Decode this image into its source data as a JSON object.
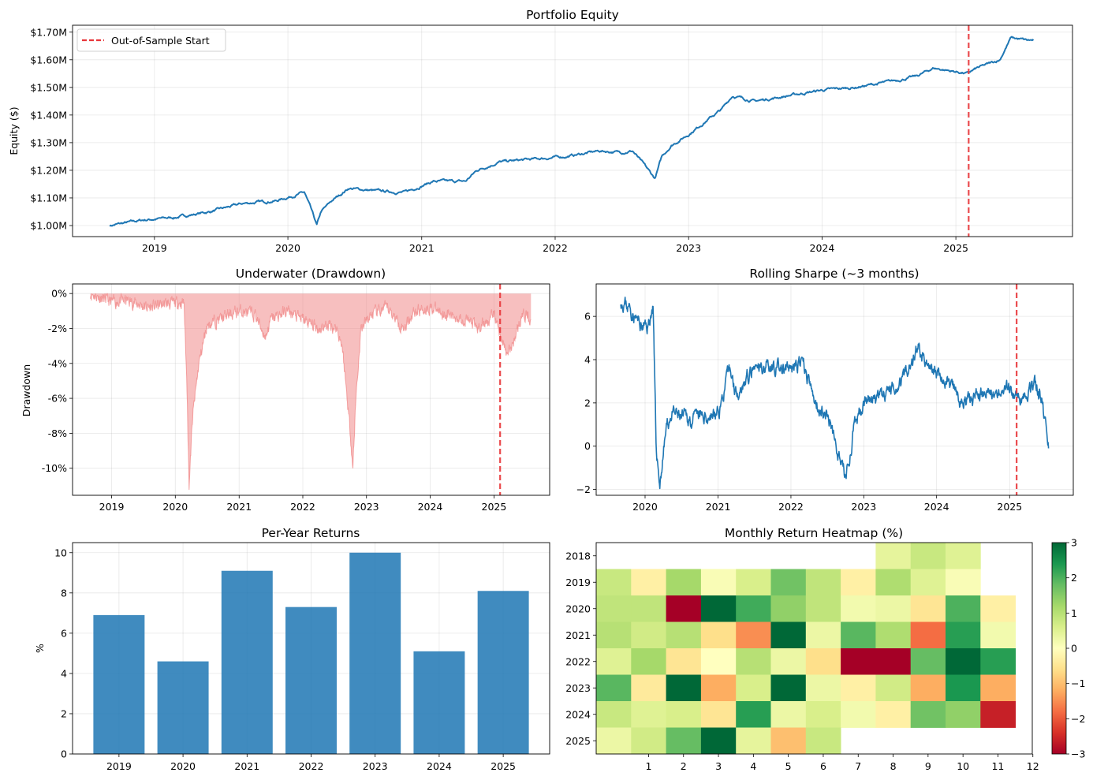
{
  "colors": {
    "series": "#1f77b4",
    "bar": "#1f77b4",
    "drawdown_fill": "#f08080",
    "oos_line": "#e8363a"
  },
  "chart_data": [
    {
      "id": "equity",
      "type": "line",
      "title": "Portfolio Equity",
      "xlabel": "",
      "ylabel": "Equity ($)",
      "x_ticks": [
        "2019",
        "2020",
        "2021",
        "2022",
        "2023",
        "2024",
        "2025"
      ],
      "y_ticks": [
        "$1.00M",
        "$1.10M",
        "$1.20M",
        "$1.30M",
        "$1.40M",
        "$1.50M",
        "$1.60M",
        "$1.70M"
      ],
      "ylim": [
        0.96,
        1.725
      ],
      "xlim": [
        "2018-05-22",
        "2025-11-16"
      ],
      "grid": true,
      "legend": {
        "position": "top-left",
        "entries": [
          "Out-of-Sample Start"
        ]
      },
      "oos_start": "2025-02-05",
      "series": [
        {
          "x": [
            "2018-09-01",
            "2018-12-01",
            "2019-03-01",
            "2019-06-01",
            "2019-09-01",
            "2019-12-01",
            "2020-02-15",
            "2020-03-01",
            "2020-03-20",
            "2020-04-01",
            "2020-05-01",
            "2020-06-15",
            "2020-09-01",
            "2020-11-15",
            "2021-02-01",
            "2021-05-01",
            "2021-06-01",
            "2021-08-01",
            "2021-11-01",
            "2022-02-01",
            "2022-05-01",
            "2022-07-01",
            "2022-08-01",
            "2022-09-01",
            "2022-10-01",
            "2022-10-20",
            "2022-11-15",
            "2023-01-01",
            "2023-03-01",
            "2023-04-01",
            "2023-05-01",
            "2023-07-01",
            "2023-10-01",
            "2024-01-01",
            "2024-04-01",
            "2024-07-01",
            "2024-09-15",
            "2024-11-01",
            "2025-02-01",
            "2025-03-01",
            "2025-05-01",
            "2025-06-01",
            "2025-07-15",
            "2025-08-01"
          ],
          "y": [
            1.0,
            1.02,
            1.03,
            1.05,
            1.08,
            1.09,
            1.12,
            1.07,
            1.0,
            1.05,
            1.09,
            1.135,
            1.125,
            1.12,
            1.16,
            1.16,
            1.2,
            1.23,
            1.24,
            1.25,
            1.27,
            1.265,
            1.27,
            1.22,
            1.17,
            1.25,
            1.29,
            1.33,
            1.39,
            1.42,
            1.47,
            1.45,
            1.47,
            1.49,
            1.5,
            1.52,
            1.54,
            1.57,
            1.55,
            1.57,
            1.6,
            1.68,
            1.67,
            1.67
          ]
        }
      ]
    },
    {
      "id": "underwater",
      "type": "area",
      "title": "Underwater (Drawdown)",
      "xlabel": "",
      "ylabel": "Drawdown",
      "x_ticks": [
        "2019",
        "2020",
        "2021",
        "2022",
        "2023",
        "2024",
        "2025"
      ],
      "y_ticks": [
        "0%",
        "-2%",
        "-4%",
        "-6%",
        "-8%",
        "-10%"
      ],
      "ylim": [
        -0.1155,
        0.0055
      ],
      "xlim": [
        "2018-05-22",
        "2025-11-16"
      ],
      "grid": true,
      "oos_start": "2025-02-05",
      "series": [
        {
          "x": [
            "2018-09-01",
            "2019-01-01",
            "2019-04-01",
            "2019-06-01",
            "2019-08-01",
            "2019-11-01",
            "2020-02-20",
            "2020-03-10",
            "2020-03-20",
            "2020-04-10",
            "2020-05-15",
            "2020-07-01",
            "2020-09-01",
            "2021-01-01",
            "2021-04-01",
            "2021-06-01",
            "2021-07-01",
            "2021-10-01",
            "2022-01-01",
            "2022-04-01",
            "2022-06-01",
            "2022-07-15",
            "2022-08-15",
            "2022-10-01",
            "2022-10-15",
            "2022-11-01",
            "2022-12-01",
            "2023-02-01",
            "2023-05-01",
            "2023-08-01",
            "2023-10-01",
            "2024-01-01",
            "2024-04-01",
            "2024-08-01",
            "2024-10-01",
            "2025-01-01",
            "2025-03-15",
            "2025-04-15",
            "2025-06-01",
            "2025-07-01",
            "2025-08-01"
          ],
          "y": [
            0.0,
            -0.005,
            -0.004,
            -0.006,
            -0.008,
            -0.006,
            -0.005,
            -0.06,
            -0.11,
            -0.07,
            -0.04,
            -0.018,
            -0.015,
            -0.01,
            -0.012,
            -0.025,
            -0.015,
            -0.01,
            -0.015,
            -0.02,
            -0.018,
            -0.02,
            -0.03,
            -0.08,
            -0.1,
            -0.06,
            -0.02,
            -0.012,
            -0.008,
            -0.02,
            -0.01,
            -0.008,
            -0.012,
            -0.015,
            -0.02,
            -0.012,
            -0.035,
            -0.03,
            -0.015,
            -0.012,
            -0.015
          ]
        }
      ]
    },
    {
      "id": "rolling-sharpe",
      "type": "line",
      "title": "Rolling Sharpe (~3 months)",
      "xlabel": "",
      "ylabel": "",
      "x_ticks": [
        "2020",
        "2021",
        "2022",
        "2023",
        "2024",
        "2025"
      ],
      "y_ticks": [
        "6",
        "4",
        "2",
        "0",
        "−2"
      ],
      "ylim": [
        -2.27,
        7.5
      ],
      "xlim": [
        "2019-05-01",
        "2025-11-16"
      ],
      "grid": true,
      "oos_start": "2025-02-05",
      "series": [
        {
          "x": [
            "2019-09-01",
            "2019-10-15",
            "2019-12-15",
            "2020-01-15",
            "2020-02-10",
            "2020-02-25",
            "2020-03-15",
            "2020-04-15",
            "2020-05-15",
            "2020-07-01",
            "2020-09-01",
            "2020-11-01",
            "2021-01-01",
            "2021-03-01",
            "2021-04-01",
            "2021-06-01",
            "2021-09-01",
            "2021-12-01",
            "2022-03-01",
            "2022-05-01",
            "2022-07-01",
            "2022-09-01",
            "2022-10-01",
            "2022-11-15",
            "2023-01-01",
            "2023-03-01",
            "2023-05-01",
            "2023-07-01",
            "2023-10-01",
            "2023-12-01",
            "2024-03-01",
            "2024-05-01",
            "2024-07-01",
            "2024-09-15",
            "2024-11-01",
            "2024-12-15",
            "2025-02-05",
            "2025-03-15",
            "2025-05-15",
            "2025-06-15",
            "2025-07-15"
          ],
          "y": [
            6.8,
            6.4,
            5.5,
            5.5,
            6.5,
            0.0,
            -1.8,
            0.8,
            1.5,
            1.3,
            1.2,
            1.4,
            1.5,
            3.5,
            2.5,
            3.2,
            3.8,
            3.5,
            3.8,
            2.0,
            1.5,
            -0.5,
            -1.5,
            0.8,
            2.2,
            2.0,
            2.5,
            3.0,
            4.5,
            3.5,
            3.0,
            2.0,
            2.2,
            2.5,
            2.5,
            3.0,
            2.2,
            2.5,
            2.8,
            2.0,
            -0.1
          ]
        }
      ]
    },
    {
      "id": "per-year",
      "type": "bar",
      "title": "Per-Year Returns",
      "xlabel": "",
      "ylabel": "%",
      "categories": [
        "2019",
        "2020",
        "2021",
        "2022",
        "2023",
        "2024",
        "2025"
      ],
      "values": [
        6.9,
        4.6,
        9.1,
        7.3,
        10.0,
        5.1,
        8.1
      ],
      "y_ticks": [
        "0",
        "2",
        "4",
        "6",
        "8",
        "10"
      ],
      "ylim": [
        0,
        10.5
      ],
      "grid": true
    },
    {
      "id": "monthly-heatmap",
      "type": "heatmap",
      "title": "Monthly Return Heatmap (%)",
      "xlabel": "",
      "ylabel": "",
      "rows": [
        "2018",
        "2019",
        "2020",
        "2021",
        "2022",
        "2023",
        "2024",
        "2025"
      ],
      "x_ticks": [
        "1",
        "2",
        "3",
        "4",
        "5",
        "6",
        "7",
        "8",
        "9",
        "10",
        "11",
        "12"
      ],
      "colorbar_ticks": [
        "3",
        "2",
        "1",
        "0",
        "−1",
        "−2",
        "−3"
      ],
      "vmin": -3,
      "vmax": 3,
      "colormap": "RdYlGn",
      "values": [
        [
          null,
          null,
          null,
          null,
          null,
          null,
          null,
          null,
          0.4,
          0.8,
          0.5,
          null
        ],
        [
          0.8,
          -0.3,
          1.2,
          0.1,
          0.6,
          1.7,
          0.9,
          -0.3,
          1.1,
          0.5,
          0.1,
          null
        ],
        [
          0.9,
          0.9,
          -3.0,
          3.0,
          2.1,
          1.4,
          0.9,
          0.2,
          0.3,
          -0.5,
          2.0,
          -0.3
        ],
        [
          1.0,
          0.7,
          1.0,
          -0.6,
          -1.5,
          3.0,
          0.3,
          1.9,
          1.1,
          -1.8,
          2.3,
          0.2
        ],
        [
          0.5,
          1.2,
          -0.5,
          0.0,
          1.0,
          0.3,
          -0.6,
          -3.0,
          -3.0,
          1.8,
          3.0,
          2.3
        ],
        [
          1.9,
          -0.4,
          3.0,
          -1.2,
          0.6,
          3.0,
          0.3,
          -0.3,
          0.7,
          -1.2,
          2.4,
          -1.2
        ],
        [
          0.8,
          0.5,
          0.6,
          -0.5,
          2.3,
          0.3,
          0.6,
          0.2,
          -0.3,
          1.7,
          1.4,
          -2.6
        ],
        [
          0.3,
          0.7,
          1.8,
          3.0,
          0.4,
          -1.0,
          0.8,
          null,
          null,
          null,
          null,
          null
        ]
      ]
    }
  ]
}
